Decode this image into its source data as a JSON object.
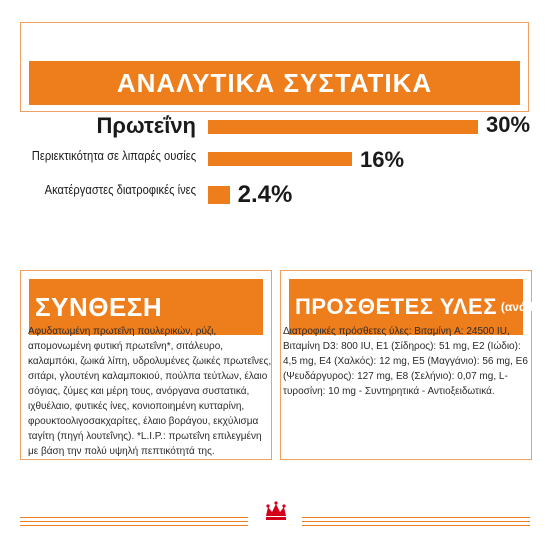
{
  "header": {
    "title": "ΑΝΑΛΥΤΙΚΑ ΣΥΣΤΑΤΙΚΑ"
  },
  "analytics": [
    {
      "label": "Πρωτεΐνη",
      "value_text": "30%",
      "value": 30
    },
    {
      "label": "Περιεκτικότητα σε λιπαρές ουσίες",
      "value_text": "16%",
      "value": 16
    },
    {
      "label": "Ακατέργαστες διατροφικές ίνες",
      "value_text": "2.4%",
      "value": 2.4
    }
  ],
  "composition": {
    "title": "ΣΥΝΘΕΣΗ",
    "text": "Αφυδατωμένη πρωτεΐνη πουλερικών, ρύζι, απομονωμένη φυτική πρωτεΐνη*, σιτάλευρο, καλαμπόκι, ζωικά λίπη, υδρολυμένες ζωικές πρωτεΐνες, σιτάρι, γλουτένη καλαμποκιού, πούλπα τεύτλων, έλαιο σόγιας, ζύμες και μέρη τους, ανόργανα συστατικά, ιχθυέλαιο, φυτικές ίνες, κονιοποιημένη κυτταρίνη, φρουκτοολιγοσακχαρίτες, έλαιο βοράγου, εκχύλισμα ταγίτη (πηγή λουτεΐνης). *L.I.P.: πρωτεΐνη επιλεγμένη με βάση την πολύ υψηλή πεπτικότητά της."
  },
  "additives": {
    "title": "ΠΡΟΣΘΕΤΕΣ ΥΛΕΣ",
    "unit": "(ανά kg)",
    "text": "Διατροφικές πρόσθετες ύλες: Βιταμίνη A: 24500 IU, Βιταμίνη D3: 800 IU, E1 (Σίδηρος): 51 mg, E2 (Ιώδιο): 4,5 mg, E4 (Χαλκός): 12 mg, E5 (Μαγγάνιο): 56 mg, E6 (Ψευδάργυρος): 127 mg, E8 (Σελήνιο): 0,07 mg, L-τυροσίνη: 10 mg - Συντηρητικά - Αντιοξειδωτικά."
  },
  "colors": {
    "accent": "#ee7d1c",
    "border": "#f0a060"
  },
  "footer": {
    "logo_icon": "royal-canin-crown-icon"
  }
}
